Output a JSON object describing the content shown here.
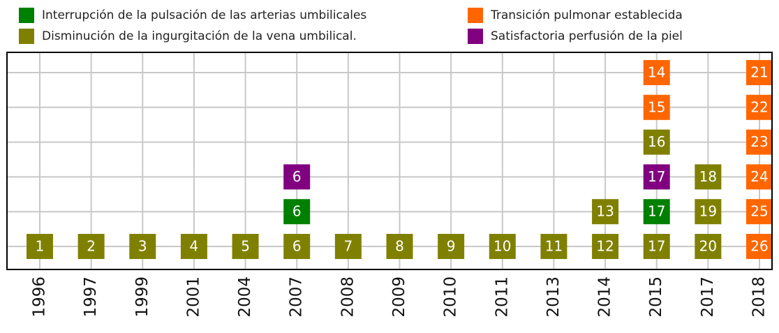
{
  "chart_data": {
    "type": "timeline",
    "series": [
      {
        "name": "Interrupción de la pulsación de las arterias umbilicales",
        "color": "#008000"
      },
      {
        "name": "Disminución de la ingurgitación de la vena umbilical.",
        "color": "#808000"
      },
      {
        "name": "Transición pulmonar establecida",
        "color": "#ff6600"
      },
      {
        "name": "Satisfactoria perfusión de la piel",
        "color": "#800080"
      }
    ],
    "categories": [
      "1996",
      "1997",
      "1999",
      "2001",
      "2004",
      "2007",
      "2008",
      "2009",
      "2010",
      "2011",
      "2013",
      "2014",
      "2015",
      "2017",
      "2018"
    ],
    "columns": [
      [
        {
          "label": 1,
          "series": 1
        }
      ],
      [
        {
          "label": 2,
          "series": 1
        }
      ],
      [
        {
          "label": 3,
          "series": 1
        }
      ],
      [
        {
          "label": 4,
          "series": 1
        }
      ],
      [
        {
          "label": 5,
          "series": 1
        }
      ],
      [
        {
          "label": 6,
          "series": 1
        },
        {
          "label": 6,
          "series": 0
        },
        {
          "label": 6,
          "series": 3
        }
      ],
      [
        {
          "label": 7,
          "series": 1
        }
      ],
      [
        {
          "label": 8,
          "series": 1
        }
      ],
      [
        {
          "label": 9,
          "series": 1
        }
      ],
      [
        {
          "label": 10,
          "series": 1
        }
      ],
      [
        {
          "label": 11,
          "series": 1
        }
      ],
      [
        {
          "label": 12,
          "series": 1
        },
        {
          "label": 13,
          "series": 1
        }
      ],
      [
        {
          "label": 17,
          "series": 1
        },
        {
          "label": 17,
          "series": 0
        },
        {
          "label": 17,
          "series": 3
        },
        {
          "label": 16,
          "series": 1
        },
        {
          "label": 15,
          "series": 2
        },
        {
          "label": 14,
          "series": 2
        }
      ],
      [
        {
          "label": 20,
          "series": 1
        },
        {
          "label": 19,
          "series": 1
        },
        {
          "label": 18,
          "series": 1
        }
      ],
      [
        {
          "label": 26,
          "series": 2
        },
        {
          "label": 25,
          "series": 2
        },
        {
          "label": 24,
          "series": 2
        },
        {
          "label": 23,
          "series": 2
        },
        {
          "label": 22,
          "series": 2
        },
        {
          "label": 21,
          "series": 2
        }
      ]
    ]
  }
}
